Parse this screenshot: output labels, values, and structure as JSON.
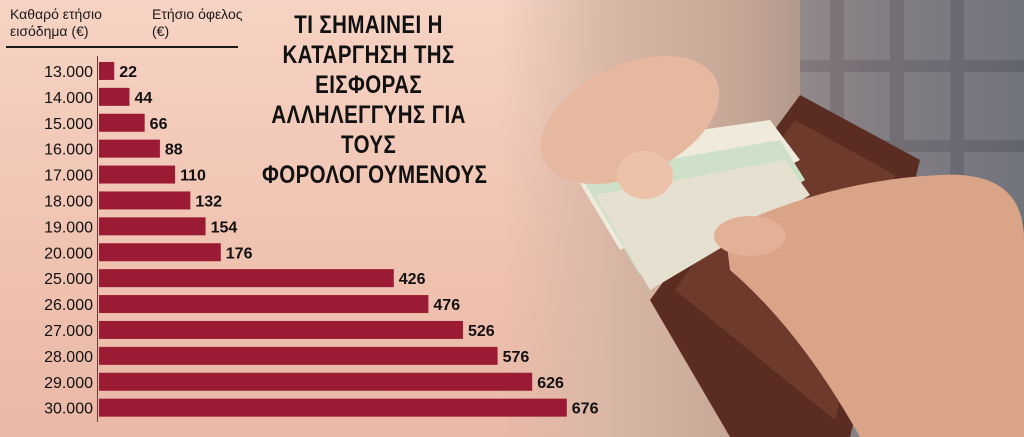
{
  "headers": {
    "income": "Καθαρό ετήσιο εισόδημα (€)",
    "benefit": "Ετήσιο όφελος (€)"
  },
  "title": "ΤΙ ΣΗΜΑΙΝΕΙ Η ΚΑΤΑΡΓΗΣΗ ΤΗΣ ΕΙΣΦΟΡΑΣ ΑΛΛΗΛΕΓΓΥΗΣ ΓΙΑ ΤΟΥΣ ΦΟΡΟΛΟΓΟΥΜΕΝΟΥΣ",
  "colors": {
    "bar": "#9b1b35",
    "background": "#f2c8b8",
    "text": "#111111"
  },
  "chart_data": {
    "type": "bar",
    "orientation": "horizontal",
    "title": "ΤΙ ΣΗΜΑΙΝΕΙ Η ΚΑΤΑΡΓΗΣΗ ΤΗΣ ΕΙΣΦΟΡΑΣ ΑΛΛΗΛΕΓΓΥΗΣ ΓΙΑ ΤΟΥΣ ΦΟΡΟΛΟΓΟΥΜΕΝΟΥΣ",
    "xlabel": "Ετήσιο όφελος (€)",
    "ylabel": "Καθαρό ετήσιο εισόδημα (€)",
    "categories": [
      "13.000",
      "14.000",
      "15.000",
      "16.000",
      "17.000",
      "18.000",
      "19.000",
      "20.000",
      "25.000",
      "26.000",
      "27.000",
      "28.000",
      "29.000",
      "30.000"
    ],
    "values": [
      22,
      44,
      66,
      88,
      110,
      132,
      154,
      176,
      426,
      476,
      526,
      576,
      626,
      676
    ],
    "grid": false,
    "legend": "none"
  }
}
